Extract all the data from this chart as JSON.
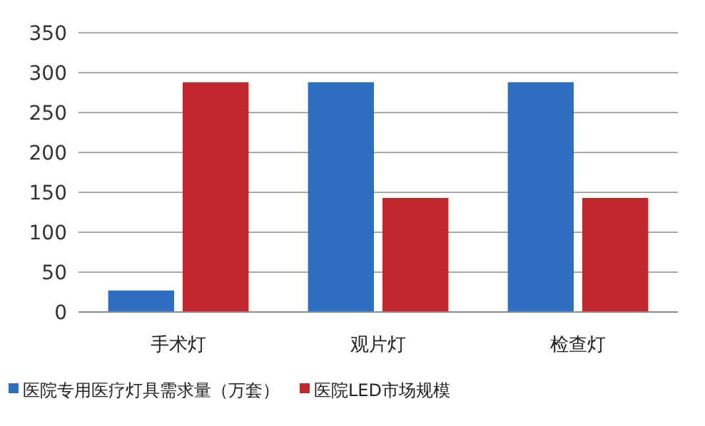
{
  "chart_data": {
    "type": "bar",
    "categories": [
      "手术灯",
      "观片灯",
      "检查灯"
    ],
    "series": [
      {
        "name": "医院专用医疗灯具需求量（万套）",
        "color": "#2e6fc0",
        "values": [
          27,
          288,
          288
        ]
      },
      {
        "name": "医院LED市场规模",
        "color": "#c0282d",
        "values": [
          288,
          143,
          143
        ]
      }
    ],
    "ylim": [
      0,
      350
    ],
    "yticks": [
      0,
      50,
      100,
      150,
      200,
      250,
      300,
      350
    ],
    "grid": "y",
    "legend": "bottom"
  }
}
